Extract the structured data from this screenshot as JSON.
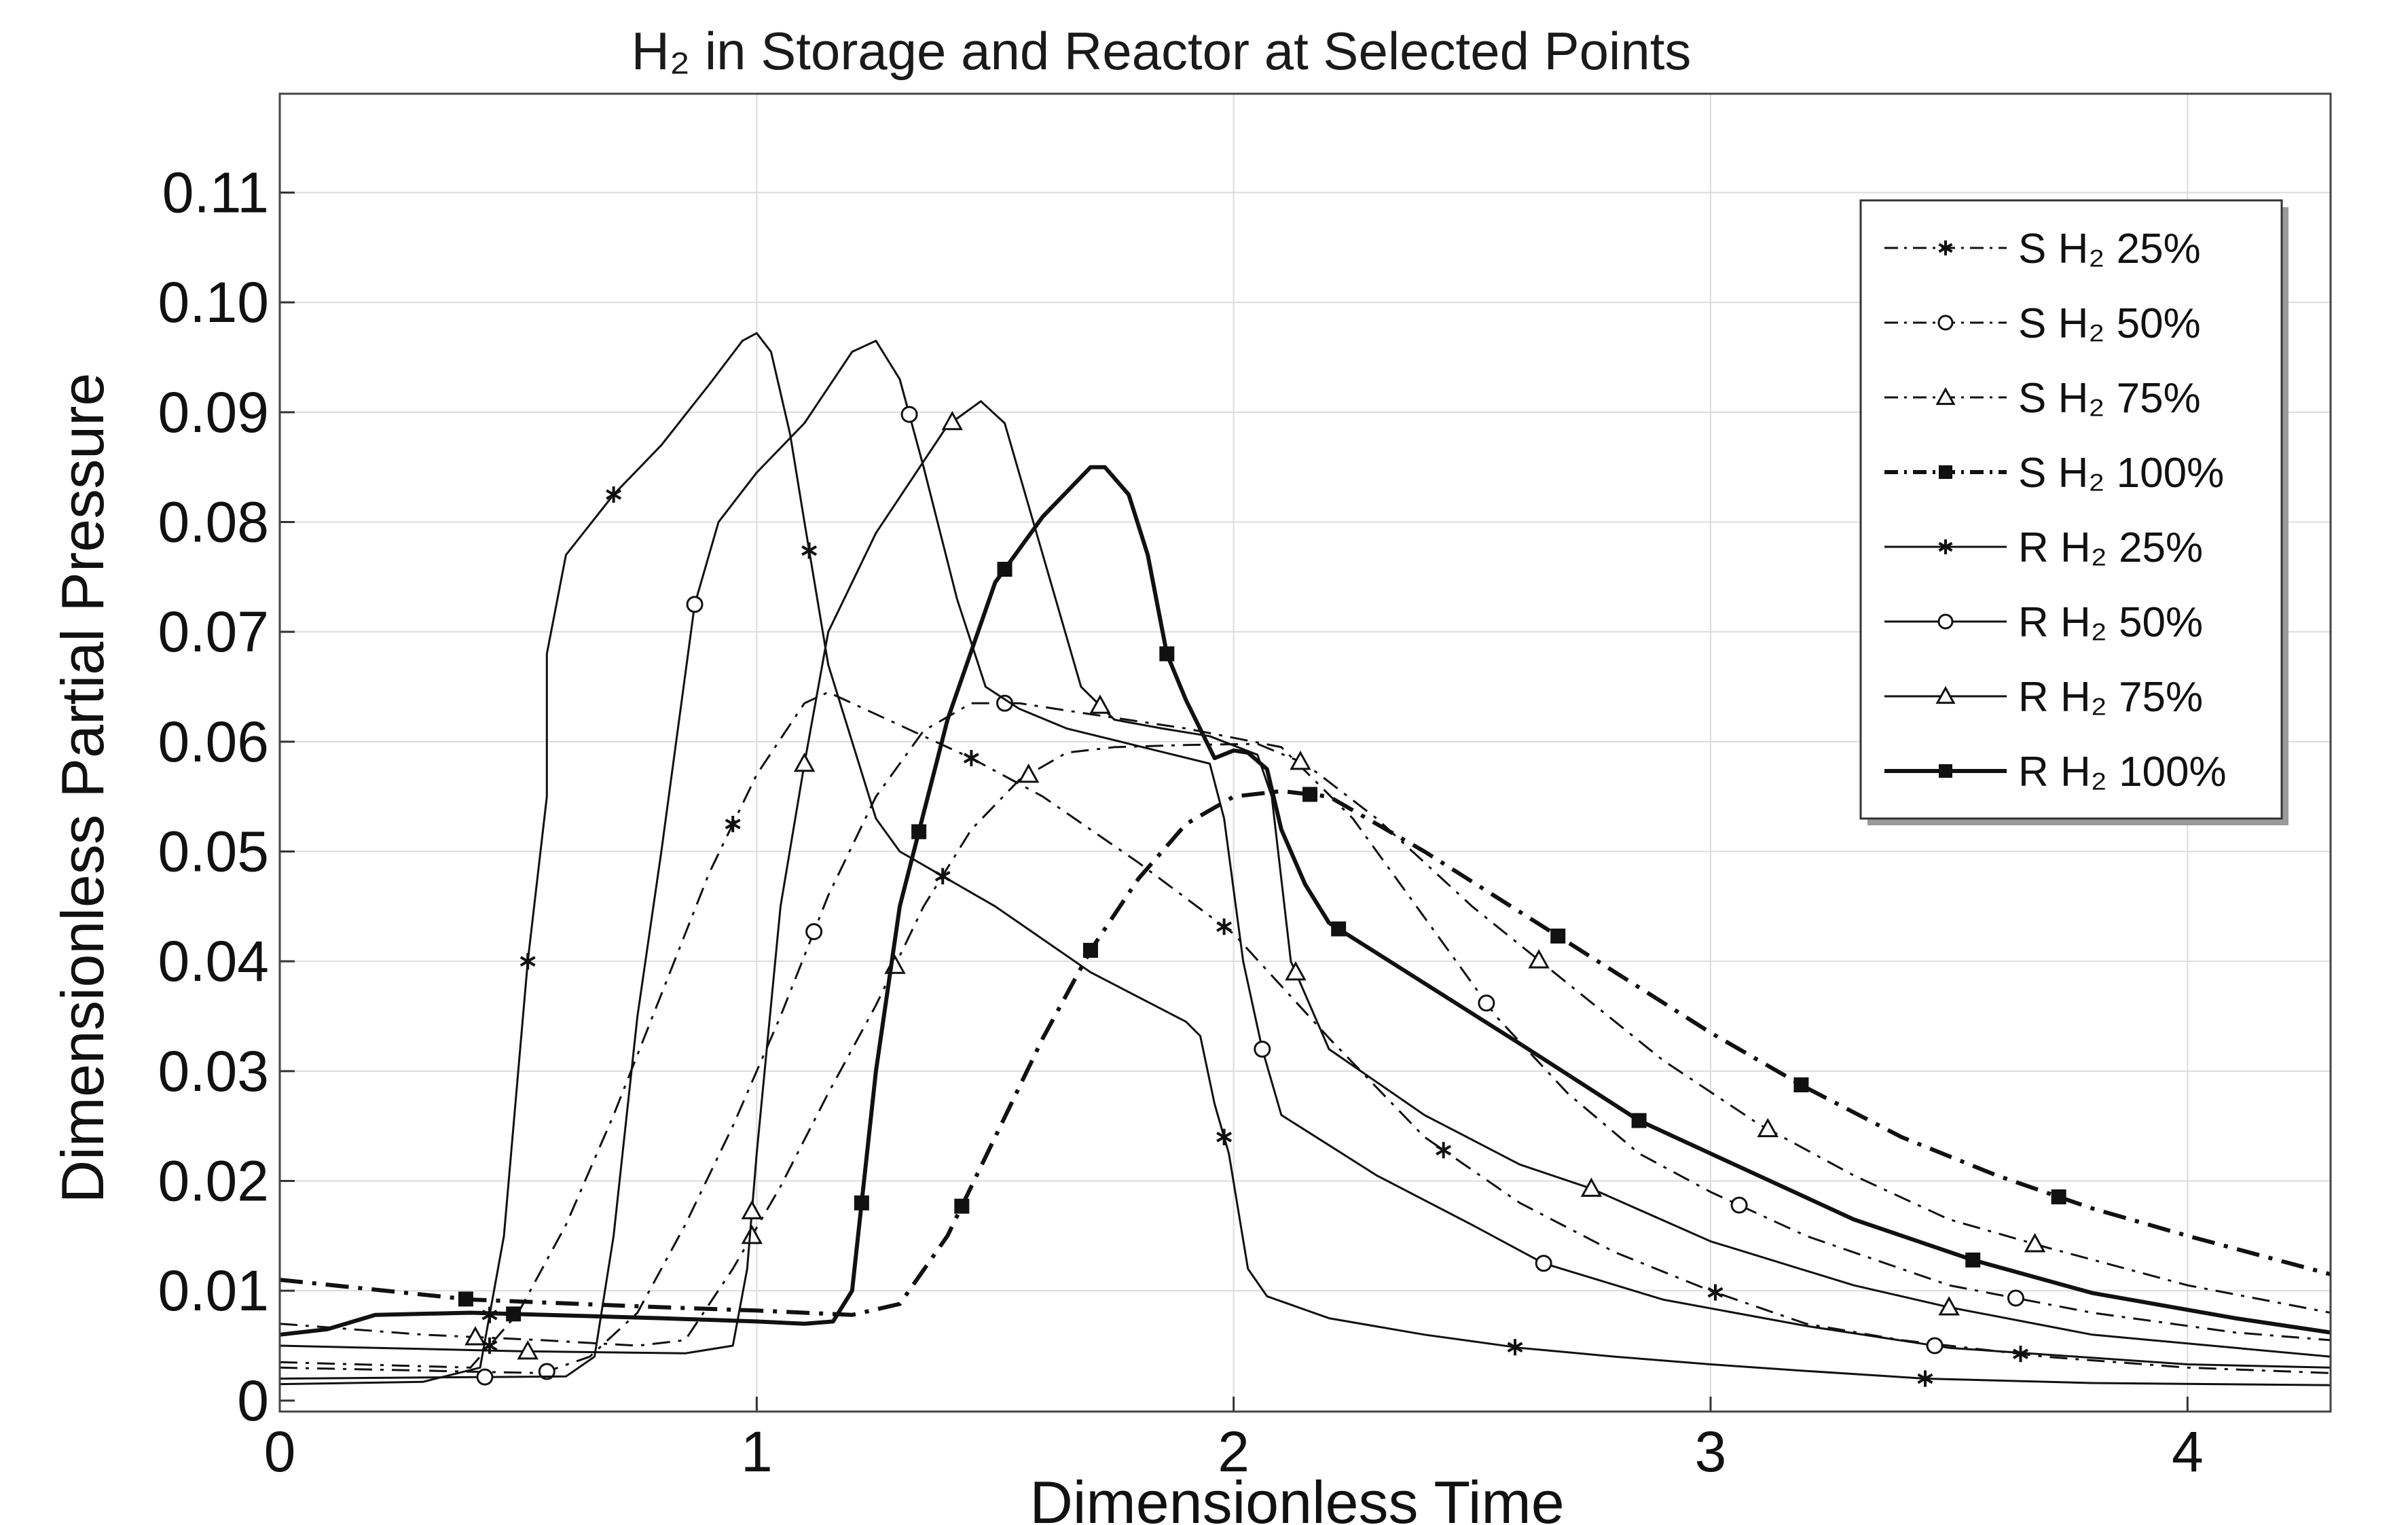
{
  "chart_data": {
    "type": "line",
    "title": "H₂ in Storage and Reactor at Selected Points",
    "xlabel": "Dimensionless Time",
    "ylabel": "Dimensionless Partial Pressure",
    "xlim": [
      0,
      4.3
    ],
    "ylim": [
      -0.001,
      0.119
    ],
    "xticks": [
      0,
      1,
      2,
      3,
      4
    ],
    "xtick_labels": [
      "0",
      "1",
      "2",
      "3",
      "4"
    ],
    "yticks": [
      0,
      0.01,
      0.02,
      0.03,
      0.04,
      0.05,
      0.06,
      0.07,
      0.08,
      0.09,
      0.1,
      0.11
    ],
    "ytick_labels": [
      "0",
      "0.01",
      "0.02",
      "0.03",
      "0.04",
      "0.05",
      "0.06",
      "0.07",
      "0.08",
      "0.09",
      "0.10",
      "0.11"
    ],
    "grid": true,
    "legend_position": "top-right",
    "series": [
      {
        "name": "S H₂  25%",
        "style": "dashdot",
        "marker": "asterisk",
        "weight": "thin",
        "points": [
          [
            0,
            0.0035
          ],
          [
            0.4,
            0.003
          ],
          [
            0.5,
            0.008
          ],
          [
            0.6,
            0.016
          ],
          [
            0.7,
            0.026
          ],
          [
            0.8,
            0.037
          ],
          [
            0.9,
            0.048
          ],
          [
            1.0,
            0.057
          ],
          [
            1.1,
            0.0635
          ],
          [
            1.15,
            0.0645
          ],
          [
            1.3,
            0.0615
          ],
          [
            1.45,
            0.0585
          ],
          [
            1.6,
            0.055
          ],
          [
            1.8,
            0.049
          ],
          [
            2.0,
            0.0425
          ],
          [
            2.2,
            0.033
          ],
          [
            2.4,
            0.024
          ],
          [
            2.6,
            0.018
          ],
          [
            2.8,
            0.0135
          ],
          [
            3.0,
            0.01
          ],
          [
            3.2,
            0.007
          ],
          [
            3.4,
            0.0055
          ],
          [
            3.7,
            0.004
          ],
          [
            4.0,
            0.003
          ],
          [
            4.3,
            0.0025
          ]
        ],
        "marker_x": [
          0.44,
          0.95,
          1.45,
          1.98,
          2.44,
          3.01,
          3.65
        ]
      },
      {
        "name": "S H₂ 50%",
        "style": "dashdot",
        "marker": "circle",
        "weight": "thin",
        "points": [
          [
            0,
            0.003
          ],
          [
            0.55,
            0.0025
          ],
          [
            0.65,
            0.004
          ],
          [
            0.75,
            0.008
          ],
          [
            0.85,
            0.016
          ],
          [
            0.95,
            0.025
          ],
          [
            1.05,
            0.035
          ],
          [
            1.15,
            0.046
          ],
          [
            1.25,
            0.055
          ],
          [
            1.35,
            0.061
          ],
          [
            1.45,
            0.0635
          ],
          [
            1.55,
            0.0635
          ],
          [
            1.7,
            0.0625
          ],
          [
            1.9,
            0.0612
          ],
          [
            2.1,
            0.0595
          ],
          [
            2.25,
            0.053
          ],
          [
            2.4,
            0.044
          ],
          [
            2.55,
            0.035
          ],
          [
            2.7,
            0.028
          ],
          [
            2.85,
            0.0225
          ],
          [
            3.0,
            0.019
          ],
          [
            3.2,
            0.015
          ],
          [
            3.5,
            0.0105
          ],
          [
            3.8,
            0.008
          ],
          [
            4.1,
            0.0062
          ],
          [
            4.3,
            0.0055
          ]
        ],
        "marker_x": [
          0.56,
          1.12,
          1.52,
          2.53,
          3.06,
          3.64
        ]
      },
      {
        "name": "S H₂  75%",
        "style": "dashdot",
        "marker": "triangle",
        "weight": "thin",
        "points": [
          [
            0,
            0.007
          ],
          [
            0.3,
            0.006
          ],
          [
            0.55,
            0.0055
          ],
          [
            0.75,
            0.005
          ],
          [
            0.85,
            0.0055
          ],
          [
            0.95,
            0.012
          ],
          [
            1.05,
            0.0195
          ],
          [
            1.15,
            0.028
          ],
          [
            1.25,
            0.036
          ],
          [
            1.35,
            0.045
          ],
          [
            1.45,
            0.052
          ],
          [
            1.55,
            0.0565
          ],
          [
            1.65,
            0.059
          ],
          [
            1.75,
            0.0595
          ],
          [
            1.9,
            0.0597
          ],
          [
            2.05,
            0.0598
          ],
          [
            2.15,
            0.058
          ],
          [
            2.3,
            0.053
          ],
          [
            2.5,
            0.045
          ],
          [
            2.7,
            0.038
          ],
          [
            2.9,
            0.031
          ],
          [
            3.1,
            0.0252
          ],
          [
            3.3,
            0.0205
          ],
          [
            3.5,
            0.0165
          ],
          [
            3.7,
            0.014
          ],
          [
            4.0,
            0.0105
          ],
          [
            4.3,
            0.008
          ]
        ],
        "marker_x": [
          0.41,
          0.99,
          1.29,
          1.57,
          2.14,
          2.64,
          3.12,
          3.68
        ]
      },
      {
        "name": "S H₂  100%",
        "style": "dashdot",
        "marker": "square",
        "weight": "thick",
        "points": [
          [
            0,
            0.011
          ],
          [
            0.4,
            0.0092
          ],
          [
            0.8,
            0.0085
          ],
          [
            1.0,
            0.0082
          ],
          [
            1.2,
            0.0078
          ],
          [
            1.3,
            0.0088
          ],
          [
            1.4,
            0.015
          ],
          [
            1.5,
            0.024
          ],
          [
            1.6,
            0.033
          ],
          [
            1.7,
            0.041
          ],
          [
            1.8,
            0.0475
          ],
          [
            1.9,
            0.0525
          ],
          [
            2.0,
            0.055
          ],
          [
            2.1,
            0.0555
          ],
          [
            2.2,
            0.055
          ],
          [
            2.4,
            0.05
          ],
          [
            2.6,
            0.0445
          ],
          [
            2.8,
            0.039
          ],
          [
            3.0,
            0.0335
          ],
          [
            3.2,
            0.0285
          ],
          [
            3.4,
            0.024
          ],
          [
            3.6,
            0.0205
          ],
          [
            3.8,
            0.0175
          ],
          [
            4.0,
            0.015
          ],
          [
            4.3,
            0.0115
          ]
        ],
        "marker_x": [
          0.39,
          1.43,
          1.7,
          2.16,
          2.68,
          3.19,
          3.73
        ]
      },
      {
        "name": "R H₂ 25%",
        "style": "solid",
        "marker": "asterisk",
        "weight": "thin",
        "points": [
          [
            0,
            0.0015
          ],
          [
            0.3,
            0.0017
          ],
          [
            0.42,
            0.003
          ],
          [
            0.47,
            0.015
          ],
          [
            0.52,
            0.04
          ],
          [
            0.56,
            0.055
          ],
          [
            0.56,
            0.068
          ],
          [
            0.6,
            0.077
          ],
          [
            0.7,
            0.0825
          ],
          [
            0.8,
            0.087
          ],
          [
            0.9,
            0.0925
          ],
          [
            0.97,
            0.0965
          ],
          [
            1.0,
            0.0972
          ],
          [
            1.03,
            0.0955
          ],
          [
            1.07,
            0.088
          ],
          [
            1.1,
            0.08
          ],
          [
            1.15,
            0.067
          ],
          [
            1.2,
            0.06
          ],
          [
            1.25,
            0.053
          ],
          [
            1.3,
            0.05
          ],
          [
            1.4,
            0.0475
          ],
          [
            1.5,
            0.045
          ],
          [
            1.7,
            0.039
          ],
          [
            1.9,
            0.0345
          ],
          [
            1.93,
            0.0332
          ],
          [
            1.96,
            0.027
          ],
          [
            1.99,
            0.0225
          ],
          [
            2.03,
            0.012
          ],
          [
            2.07,
            0.0095
          ],
          [
            2.2,
            0.0075
          ],
          [
            2.4,
            0.006
          ],
          [
            2.6,
            0.0048
          ],
          [
            2.8,
            0.004
          ],
          [
            3.0,
            0.0033
          ],
          [
            3.2,
            0.0027
          ],
          [
            3.45,
            0.002
          ],
          [
            3.8,
            0.0016
          ],
          [
            4.3,
            0.0014
          ]
        ],
        "marker_x": [
          0.44,
          0.52,
          0.7,
          1.11,
          1.39,
          1.98,
          2.59,
          3.45
        ]
      },
      {
        "name": "R H₂  50%",
        "style": "solid",
        "marker": "circle",
        "weight": "thin",
        "points": [
          [
            0,
            0.002
          ],
          [
            0.6,
            0.0022
          ],
          [
            0.66,
            0.004
          ],
          [
            0.7,
            0.015
          ],
          [
            0.75,
            0.035
          ],
          [
            0.8,
            0.05
          ],
          [
            0.87,
            0.0725
          ],
          [
            0.92,
            0.08
          ],
          [
            1.0,
            0.0845
          ],
          [
            1.1,
            0.089
          ],
          [
            1.2,
            0.0955
          ],
          [
            1.25,
            0.0965
          ],
          [
            1.3,
            0.093
          ],
          [
            1.35,
            0.085
          ],
          [
            1.42,
            0.073
          ],
          [
            1.48,
            0.065
          ],
          [
            1.55,
            0.063
          ],
          [
            1.65,
            0.0612
          ],
          [
            1.8,
            0.0596
          ],
          [
            1.95,
            0.058
          ],
          [
            1.98,
            0.053
          ],
          [
            2.02,
            0.04
          ],
          [
            2.06,
            0.032
          ],
          [
            2.1,
            0.026
          ],
          [
            2.3,
            0.0205
          ],
          [
            2.5,
            0.016
          ],
          [
            2.65,
            0.0125
          ],
          [
            2.9,
            0.0092
          ],
          [
            3.2,
            0.0068
          ],
          [
            3.5,
            0.0048
          ],
          [
            4.0,
            0.0033
          ],
          [
            4.3,
            0.003
          ]
        ],
        "marker_x": [
          0.43,
          0.87,
          1.32,
          2.06,
          2.65,
          3.47
        ]
      },
      {
        "name": "R H₂  75%",
        "style": "solid",
        "marker": "triangle",
        "weight": "thin",
        "points": [
          [
            0,
            0.005
          ],
          [
            0.5,
            0.0045
          ],
          [
            0.85,
            0.0043
          ],
          [
            0.95,
            0.005
          ],
          [
            0.98,
            0.012
          ],
          [
            1.0,
            0.0225
          ],
          [
            1.05,
            0.045
          ],
          [
            1.1,
            0.058
          ],
          [
            1.15,
            0.07
          ],
          [
            1.25,
            0.079
          ],
          [
            1.4,
            0.0888
          ],
          [
            1.47,
            0.091
          ],
          [
            1.52,
            0.089
          ],
          [
            1.6,
            0.077
          ],
          [
            1.68,
            0.065
          ],
          [
            1.75,
            0.062
          ],
          [
            1.85,
            0.0612
          ],
          [
            1.95,
            0.0605
          ],
          [
            2.05,
            0.0588
          ],
          [
            2.08,
            0.055
          ],
          [
            2.12,
            0.04
          ],
          [
            2.2,
            0.032
          ],
          [
            2.4,
            0.026
          ],
          [
            2.6,
            0.0215
          ],
          [
            2.75,
            0.0193
          ],
          [
            3.0,
            0.0145
          ],
          [
            3.3,
            0.0105
          ],
          [
            3.5,
            0.0085
          ],
          [
            3.8,
            0.006
          ],
          [
            4.3,
            0.004
          ]
        ],
        "marker_x": [
          0.52,
          0.99,
          1.1,
          1.41,
          1.72,
          2.13,
          2.75,
          3.5
        ]
      },
      {
        "name": "R H₂ 100%",
        "style": "solid",
        "marker": "square",
        "weight": "thick",
        "points": [
          [
            0,
            0.006
          ],
          [
            0.1,
            0.0065
          ],
          [
            0.2,
            0.0078
          ],
          [
            0.4,
            0.008
          ],
          [
            0.8,
            0.0075
          ],
          [
            1.0,
            0.0072
          ],
          [
            1.1,
            0.007
          ],
          [
            1.16,
            0.0072
          ],
          [
            1.2,
            0.01
          ],
          [
            1.25,
            0.03
          ],
          [
            1.3,
            0.045
          ],
          [
            1.4,
            0.062
          ],
          [
            1.5,
            0.0745
          ],
          [
            1.6,
            0.0805
          ],
          [
            1.7,
            0.085
          ],
          [
            1.73,
            0.085
          ],
          [
            1.78,
            0.0825
          ],
          [
            1.82,
            0.077
          ],
          [
            1.86,
            0.068
          ],
          [
            1.9,
            0.0638
          ],
          [
            1.96,
            0.0585
          ],
          [
            2.0,
            0.0592
          ],
          [
            2.03,
            0.059
          ],
          [
            2.07,
            0.0575
          ],
          [
            2.1,
            0.052
          ],
          [
            2.15,
            0.047
          ],
          [
            2.2,
            0.0435
          ],
          [
            2.4,
            0.038
          ],
          [
            2.6,
            0.0325
          ],
          [
            2.85,
            0.0255
          ],
          [
            3.05,
            0.0215
          ],
          [
            3.3,
            0.0165
          ],
          [
            3.55,
            0.0128
          ],
          [
            3.8,
            0.0098
          ],
          [
            4.1,
            0.0075
          ],
          [
            4.3,
            0.0062
          ]
        ],
        "marker_x": [
          0.49,
          1.22,
          1.34,
          1.52,
          1.86,
          2.22,
          2.85,
          3.55
        ]
      }
    ]
  }
}
